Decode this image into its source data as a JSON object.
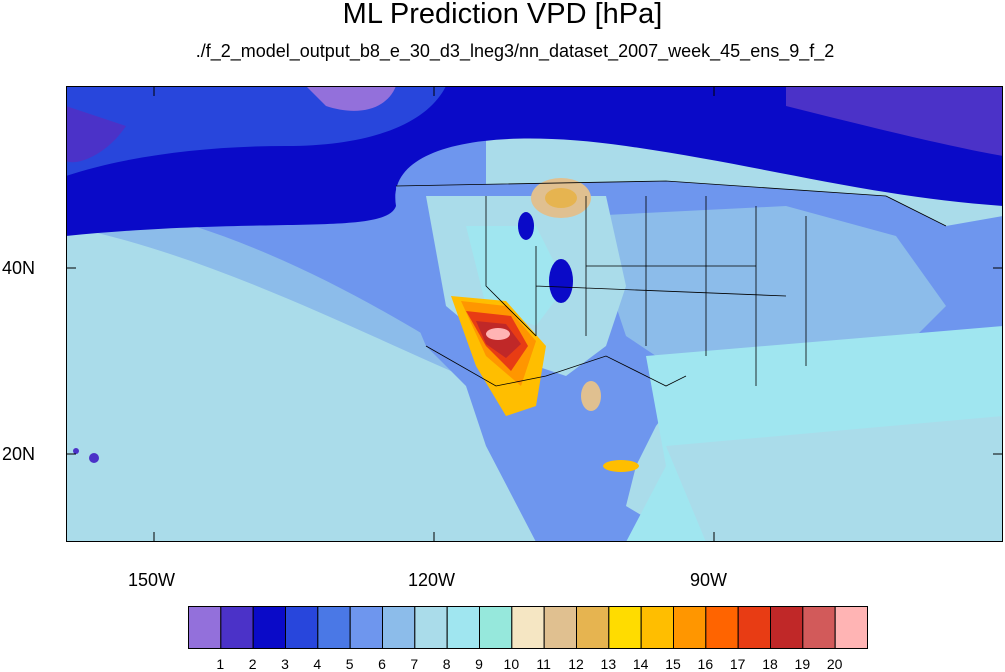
{
  "title": "ML Prediction VPD [hPa]",
  "subtitle": "./f_2_model_output_b8_e_30_d3_lneg3/nn_dataset_2007_week_45_ens_9_f_2",
  "axes": {
    "x_ticks": [
      "150W",
      "120W",
      "90W"
    ],
    "y_ticks": [
      "40N",
      "20N"
    ]
  },
  "colorbar": {
    "labels": [
      "1",
      "2",
      "3",
      "4",
      "5",
      "6",
      "7",
      "8",
      "9",
      "10",
      "11",
      "12",
      "13",
      "14",
      "15",
      "16",
      "17",
      "18",
      "19",
      "20"
    ],
    "colors": [
      "#9370db",
      "#4b32c8",
      "#0a0ac8",
      "#2846dc",
      "#4a78e6",
      "#6e96ee",
      "#8cbcea",
      "#aadcea",
      "#a0e6f0",
      "#96e8dc",
      "#f5e6c3",
      "#e0c090",
      "#e6b450",
      "#ffdc00",
      "#ffbe00",
      "#ff9600",
      "#ff6400",
      "#e83c14",
      "#c02828",
      "#d25a5a",
      "#ffb4b4"
    ]
  },
  "map_regions": {
    "ocean_south": "#aadcea",
    "ocean_mid": "#8cbcea",
    "ocean_band": "#6e96ee",
    "ocean_north": "#2846dc",
    "ocean_far_north": "#4b32c8",
    "land_east": "#aadcea",
    "land_west": "#6e96ee"
  }
}
